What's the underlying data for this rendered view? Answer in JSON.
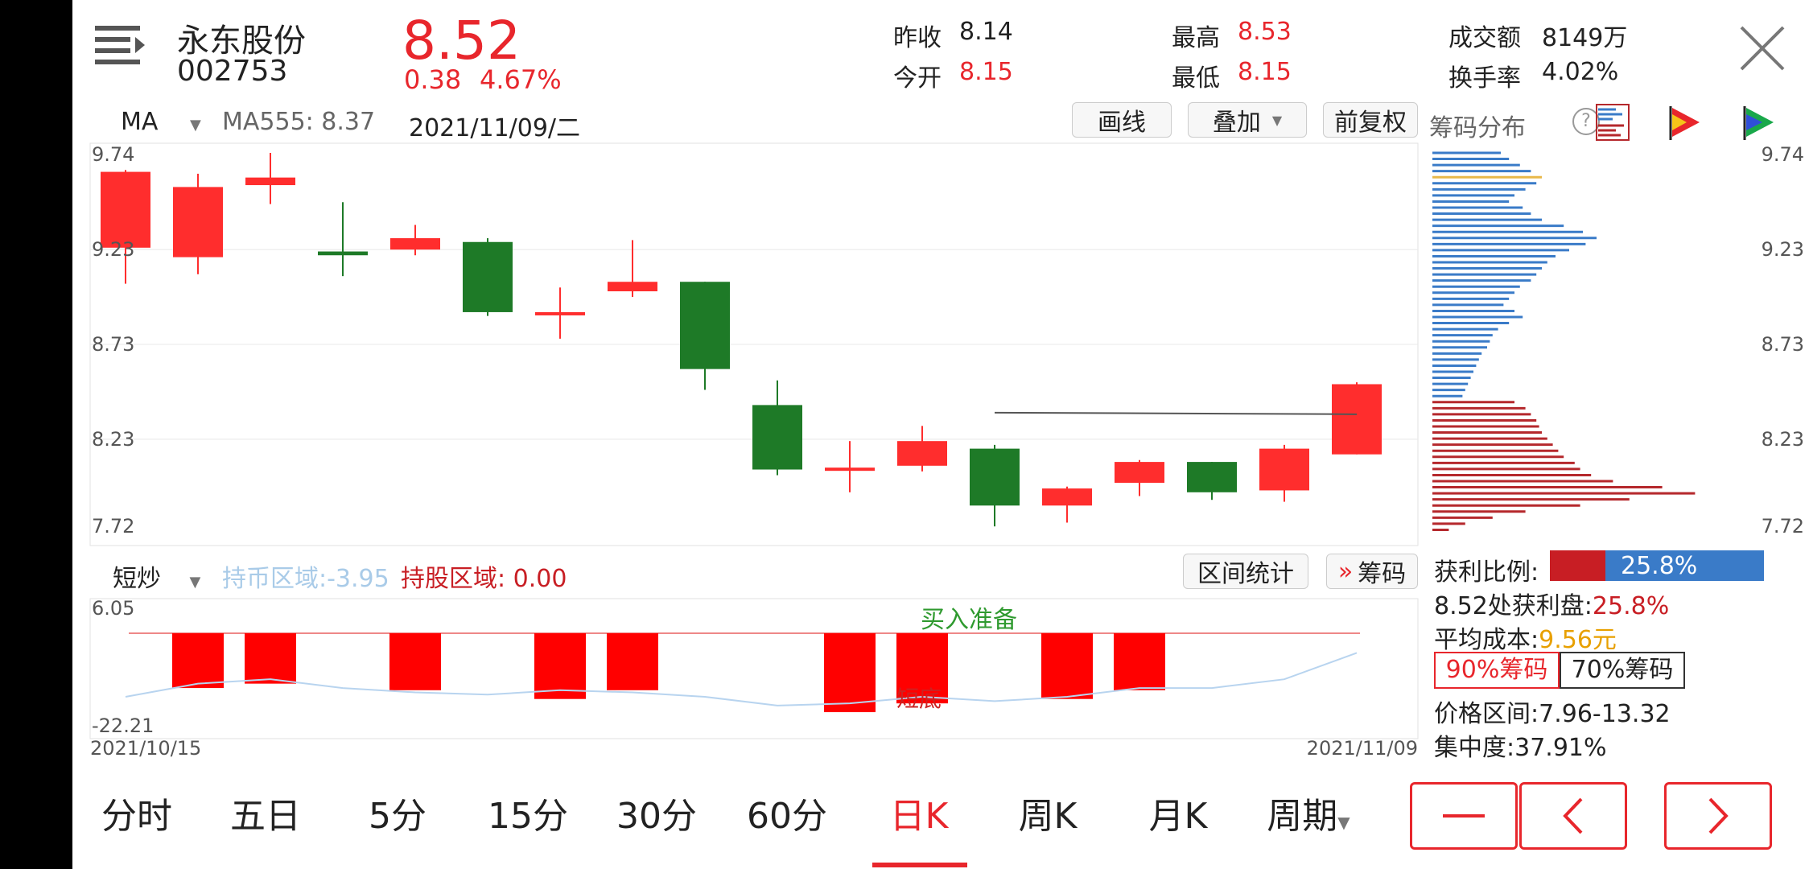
{
  "header": {
    "stock_name": "永东股份",
    "stock_code": "002753",
    "price": "8.52",
    "change": "0.38",
    "change_pct": "4.67%",
    "prev_close_label": "昨收",
    "prev_close": "8.14",
    "open_label": "今开",
    "open": "8.15",
    "high_label": "最高",
    "high": "8.53",
    "low_label": "最低",
    "low": "8.15",
    "turnover_label": "成交额",
    "turnover": "8149万",
    "turnover_rate_label": "换手率",
    "turnover_rate": "4.02%"
  },
  "toolbar": {
    "indicator": "MA",
    "ma_text": "MA555: 8.37",
    "date": "2021/11/09/二",
    "draw_label": "画线",
    "overlay_label": "叠加",
    "adjust_label": "前复权",
    "chip_dist_label": "筹码分布"
  },
  "chart_data": [
    {
      "type": "candlestick",
      "ylim": [
        7.72,
        9.74
      ],
      "y_ticks": [
        "9.74",
        "9.23",
        "8.73",
        "8.23",
        "7.72"
      ],
      "candles": [
        {
          "open": 9.24,
          "close": 9.64,
          "high": 9.65,
          "low": 9.05
        },
        {
          "open": 9.19,
          "close": 9.56,
          "high": 9.63,
          "low": 9.1
        },
        {
          "open": 9.57,
          "close": 9.61,
          "high": 9.74,
          "low": 9.47
        },
        {
          "open": 9.22,
          "close": 9.2,
          "high": 9.48,
          "low": 9.09
        },
        {
          "open": 9.23,
          "close": 9.29,
          "high": 9.36,
          "low": 9.2
        },
        {
          "open": 9.27,
          "close": 8.9,
          "high": 9.29,
          "low": 8.88
        },
        {
          "open": 8.9,
          "close": 8.9,
          "high": 9.03,
          "low": 8.76
        },
        {
          "open": 9.01,
          "close": 9.06,
          "high": 9.28,
          "low": 8.98
        },
        {
          "open": 9.06,
          "close": 8.6,
          "high": 9.06,
          "low": 8.49
        },
        {
          "open": 8.41,
          "close": 8.07,
          "high": 8.54,
          "low": 8.04
        },
        {
          "open": 8.08,
          "close": 8.08,
          "high": 8.22,
          "low": 7.95
        },
        {
          "open": 8.09,
          "close": 8.22,
          "high": 8.3,
          "low": 8.06
        },
        {
          "open": 8.18,
          "close": 7.88,
          "high": 8.2,
          "low": 7.77
        },
        {
          "open": 7.88,
          "close": 7.97,
          "high": 7.98,
          "low": 7.79
        },
        {
          "open": 8.0,
          "close": 8.11,
          "high": 8.12,
          "low": 7.93
        },
        {
          "open": 8.11,
          "close": 7.95,
          "high": 8.11,
          "low": 7.91
        },
        {
          "open": 7.96,
          "close": 8.18,
          "high": 8.2,
          "low": 7.9
        },
        {
          "open": 8.15,
          "close": 8.52,
          "high": 8.53,
          "low": 8.15
        }
      ],
      "ma_line": 8.37
    },
    {
      "type": "bar",
      "ylim": [
        -22.21,
        6.05
      ],
      "y_ticks": [
        "6.05",
        "-22.21"
      ],
      "x_start_label": "2021/10/15",
      "x_end_label": "2021/11/09",
      "values": [
        0,
        -12.5,
        -11.5,
        0,
        -13,
        0,
        -15,
        -13,
        0,
        0,
        -18,
        -16,
        0,
        -15,
        -13,
        0,
        0,
        0
      ],
      "line": [
        -14.5,
        -11.5,
        -10.5,
        -12.5,
        -13.5,
        -14,
        -13,
        -13.5,
        -14.5,
        -16.5,
        -16,
        -14.5,
        -15.5,
        -14.5,
        -12.5,
        -12.5,
        -10.5,
        -4.5
      ],
      "annotations": [
        "买入准备",
        "短底"
      ]
    }
  ],
  "chips": {
    "price_ticks": [
      "9.74",
      "9.23",
      "8.73",
      "8.23",
      "7.72"
    ],
    "profit_ratio_label": "获利比例:",
    "profit_ratio": "25.8%",
    "profit_at_label": "8.52处获利盘:",
    "profit_at": "25.8%",
    "avg_cost_label": "平均成本:",
    "avg_cost": "9.56元",
    "chip90_label": "90%筹码",
    "chip70_label": "70%筹码",
    "price_range_label": "价格区间:",
    "price_range": "7.96-13.32",
    "concentration_label": "集中度:",
    "concentration": "37.91%"
  },
  "sub_toolbar": {
    "indicator": "短炒",
    "coin_zone_text": "持币区域:-3.95",
    "hold_zone_text": "持股区域: 0.00",
    "stats_label": "区间统计",
    "chip_label": "筹码"
  },
  "tabs": [
    "分时",
    "五日",
    "5分",
    "15分",
    "30分",
    "60分",
    "日K",
    "周K",
    "月K",
    "周期"
  ],
  "active_tab": "日K",
  "colors": {
    "up": "#ff2d2d",
    "down": "#1e7a27",
    "blue_chip": "#3a7bc8",
    "red_chip": "#b5282c",
    "accent": "#e8262c"
  }
}
